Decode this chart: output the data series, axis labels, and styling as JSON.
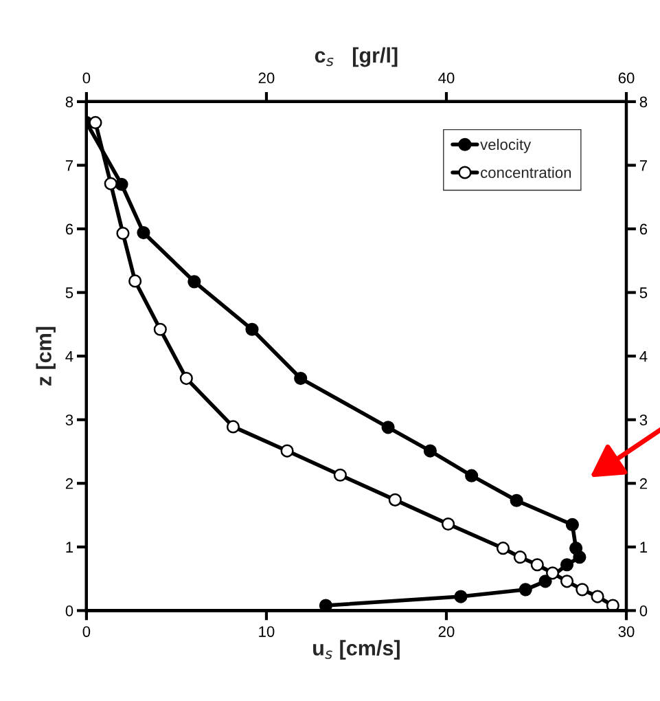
{
  "chart_data": {
    "type": "line",
    "xlabel": "u$_{s}$ [cm/s]",
    "x2label": "c$_{s}$   [gr/l]",
    "ylabel": "z [cm]",
    "xlim": [
      0,
      30
    ],
    "xticks": [
      0,
      10,
      20,
      30
    ],
    "x2lim": [
      0,
      60
    ],
    "x2ticks": [
      0,
      20,
      40,
      60
    ],
    "ylim": [
      0,
      8
    ],
    "yticks": [
      0,
      1,
      2,
      3,
      4,
      5,
      6,
      7,
      8
    ],
    "y2lim": [
      0,
      8
    ],
    "y2ticks": [
      0,
      1,
      2,
      3,
      4,
      5,
      6,
      7,
      8
    ],
    "marker": "circle",
    "line_style": "solid",
    "grid": false,
    "legend": "top right",
    "series": [
      {
        "name": "velocity",
        "color": "#000000",
        "x": [
          0,
          1.95,
          3.17,
          5.99,
          9.2,
          11.9,
          16.76,
          19.1,
          21.4,
          23.9,
          27.0,
          27.2,
          27.4,
          26.7,
          25.5,
          24.4,
          20.8,
          13.3
        ],
        "values": [
          7.67,
          6.7,
          5.94,
          5.17,
          4.42,
          3.65,
          2.88,
          2.51,
          2.12,
          1.73,
          1.35,
          0.98,
          0.84,
          0.72,
          0.46,
          0.33,
          0.22,
          0.08
        ]
      },
      {
        "name": "concentration",
        "color": "#000000",
        "axis": "x2",
        "x": [
          1.0,
          2.7,
          4.05,
          5.4,
          8.2,
          11.1,
          16.3,
          22.3,
          28.2,
          34.3,
          40.2,
          46.3,
          48.2,
          50.1,
          51.8,
          53.4,
          55.1,
          56.8,
          58.5
        ],
        "values": [
          7.67,
          6.71,
          5.93,
          5.18,
          4.42,
          3.65,
          2.89,
          2.51,
          2.13,
          1.74,
          1.36,
          0.98,
          0.84,
          0.72,
          0.59,
          0.46,
          0.33,
          0.22,
          0.08
        ]
      }
    ]
  }
}
